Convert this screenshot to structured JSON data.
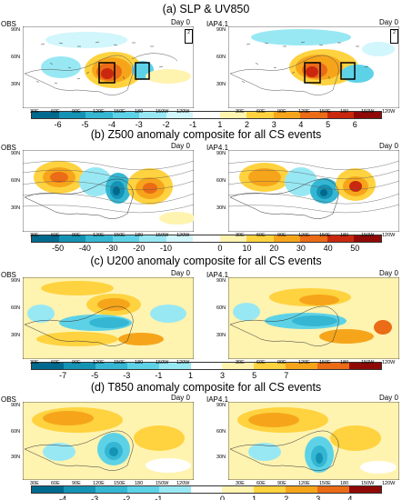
{
  "panels": [
    {
      "key": "a",
      "title": "(a) SLP & UV850",
      "left_label": "OBS",
      "right_label": "IAP4.1",
      "day_label": "Day 0",
      "cbar_labels": [
        "-6",
        "-5",
        "-4",
        "-3",
        "-2",
        "-1",
        "1",
        "2",
        "3",
        "4",
        "5",
        "6"
      ],
      "ref_vector": "2"
    },
    {
      "key": "b",
      "title": "(b) Z500 anomaly composite for all CS events",
      "left_label": "OBS",
      "right_label": "IAP4.1",
      "day_label": "Day 0",
      "cbar_labels": [
        "-50",
        "-40",
        "-30",
        "-20",
        "-10",
        "0",
        "10",
        "20",
        "30",
        "40",
        "50"
      ]
    },
    {
      "key": "c",
      "title": "(c) U200 anomaly composite for all CS events",
      "left_label": "OBS",
      "right_label": "IAP4.1",
      "day_label": "Day 0",
      "cbar_labels": [
        "-7",
        "-5",
        "-3",
        "-1",
        "1",
        "3",
        "5",
        "7"
      ]
    },
    {
      "key": "d",
      "title": "(d) T850 anomaly composite for all CS events",
      "left_label": "OBS",
      "right_label": "IAP4.1",
      "day_label": "Day 0",
      "cbar_labels": [
        "-4",
        "-3",
        "-2",
        "-1",
        "0",
        "1",
        "2",
        "3",
        "4"
      ]
    }
  ],
  "lat_ticks": [
    "90N",
    "60N",
    "30N"
  ],
  "lon_ticks": [
    "30E",
    "60E",
    "90E",
    "120E",
    "150E",
    "180",
    "150W",
    "120W"
  ],
  "colors": {
    "cbar_a": [
      "#006a8e",
      "#1593b4",
      "#35b7d3",
      "#5dd2e7",
      "#98e8f4",
      "#d1f6fb",
      "#ffffff",
      "#fff3b0",
      "#ffd23f",
      "#f6a51b",
      "#eb6b16",
      "#c9280e",
      "#8f0a07"
    ],
    "cbar_b": [
      "#006a8e",
      "#1593b4",
      "#35b7d3",
      "#5dd2e7",
      "#98e8f4",
      "#d1f6fb",
      "#ffffff",
      "#fff3b0",
      "#ffd23f",
      "#f6a51b",
      "#eb6b16",
      "#c9280e",
      "#8f0a07"
    ],
    "cbar_c": [
      "#006a8e",
      "#1593b4",
      "#35b7d3",
      "#5dd2e7",
      "#98e8f4",
      "#ffffff",
      "#fff3b0",
      "#ffd23f",
      "#f6a51b",
      "#eb6b16",
      "#8f0a07"
    ],
    "cbar_d": [
      "#006a8e",
      "#1593b4",
      "#35b7d3",
      "#5dd2e7",
      "#98e8f4",
      "#ffffff",
      "#fff3b0",
      "#ffd23f",
      "#f6a51b",
      "#eb6b16",
      "#8f0a07"
    ]
  }
}
